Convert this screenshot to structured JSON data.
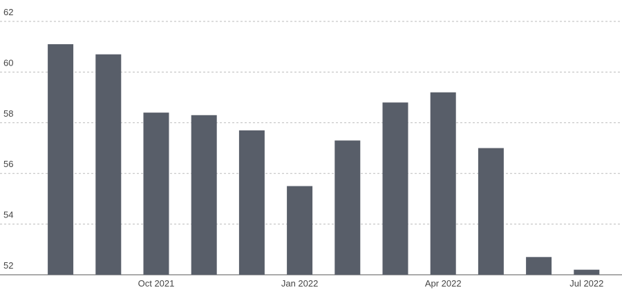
{
  "chart_data": {
    "type": "bar",
    "categories": [
      null,
      null,
      "Oct 2021",
      null,
      null,
      "Jan 2022",
      null,
      null,
      "Apr 2022",
      null,
      null,
      "Jul 2022"
    ],
    "values": [
      61.1,
      60.7,
      58.4,
      58.3,
      57.7,
      55.5,
      57.3,
      58.8,
      59.2,
      57.0,
      52.7,
      52.2
    ],
    "color": "#585e69",
    "ylim": [
      52,
      62
    ],
    "yticks": [
      52,
      54,
      56,
      58,
      60,
      62
    ],
    "grid": true
  }
}
